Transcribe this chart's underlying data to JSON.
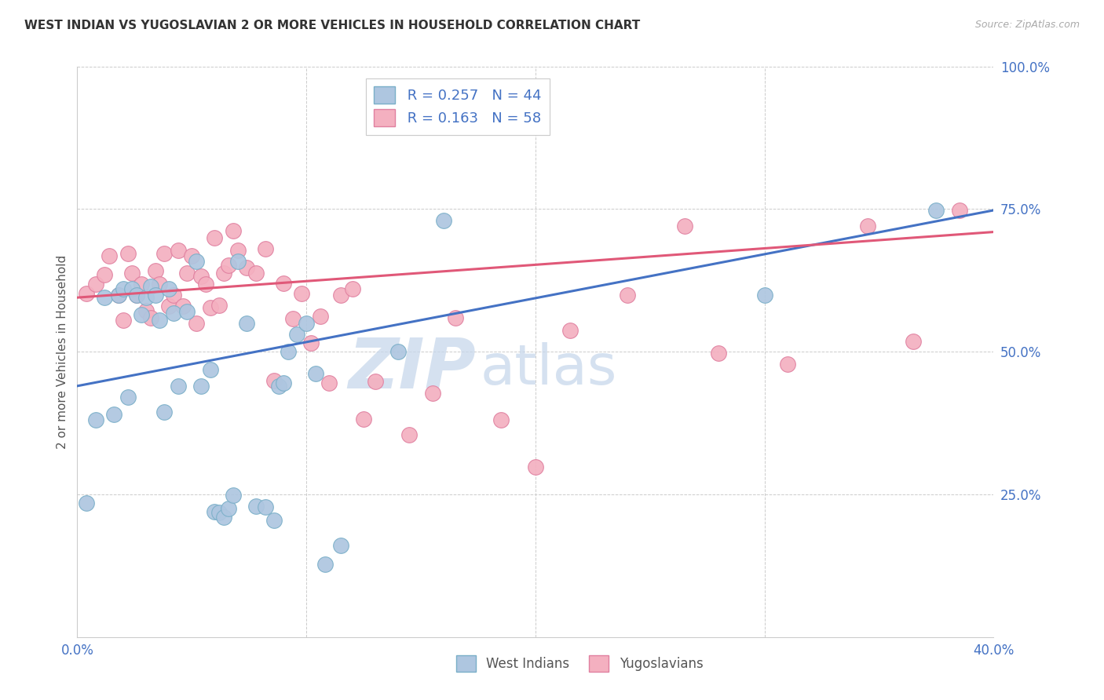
{
  "title": "WEST INDIAN VS YUGOSLAVIAN 2 OR MORE VEHICLES IN HOUSEHOLD CORRELATION CHART",
  "source": "Source: ZipAtlas.com",
  "ylabel": "2 or more Vehicles in Household",
  "xlim": [
    0.0,
    0.4
  ],
  "ylim": [
    0.0,
    1.0
  ],
  "xticks": [
    0.0,
    0.1,
    0.2,
    0.3,
    0.4
  ],
  "xticklabels": [
    "0.0%",
    "",
    "",
    "",
    "40.0%"
  ],
  "yticks": [
    0.0,
    0.25,
    0.5,
    0.75,
    1.0
  ],
  "yticklabels": [
    "",
    "25.0%",
    "50.0%",
    "75.0%",
    "100.0%"
  ],
  "blue_R": "0.257",
  "blue_N": "44",
  "pink_R": "0.163",
  "pink_N": "58",
  "blue_scatter_color": "#aec6e0",
  "blue_scatter_edge": "#7aafc8",
  "pink_scatter_color": "#f4b0c0",
  "pink_scatter_edge": "#e080a0",
  "blue_line_color": "#4472c4",
  "pink_line_color": "#e05878",
  "watermark_zip": "ZIP",
  "watermark_atlas": "atlas",
  "watermark_color": "#c8d8eb",
  "blue_trend_x0": 0.0,
  "blue_trend_x1": 0.4,
  "blue_trend_y0": 0.44,
  "blue_trend_y1": 0.748,
  "pink_trend_x0": 0.0,
  "pink_trend_x1": 0.4,
  "pink_trend_y0": 0.595,
  "pink_trend_y1": 0.71,
  "blue_x": [
    0.004,
    0.008,
    0.012,
    0.016,
    0.018,
    0.02,
    0.022,
    0.024,
    0.026,
    0.028,
    0.03,
    0.032,
    0.034,
    0.036,
    0.038,
    0.04,
    0.042,
    0.044,
    0.048,
    0.052,
    0.054,
    0.058,
    0.06,
    0.062,
    0.064,
    0.066,
    0.068,
    0.07,
    0.074,
    0.078,
    0.082,
    0.086,
    0.088,
    0.09,
    0.092,
    0.096,
    0.1,
    0.104,
    0.108,
    0.115,
    0.14,
    0.16,
    0.3,
    0.375
  ],
  "blue_y": [
    0.235,
    0.38,
    0.595,
    0.39,
    0.6,
    0.61,
    0.42,
    0.61,
    0.6,
    0.565,
    0.595,
    0.615,
    0.6,
    0.555,
    0.395,
    0.61,
    0.568,
    0.44,
    0.57,
    0.658,
    0.44,
    0.468,
    0.22,
    0.218,
    0.21,
    0.225,
    0.248,
    0.658,
    0.55,
    0.23,
    0.228,
    0.205,
    0.44,
    0.445,
    0.5,
    0.53,
    0.55,
    0.462,
    0.128,
    0.16,
    0.5,
    0.73,
    0.6,
    0.748
  ],
  "pink_x": [
    0.004,
    0.008,
    0.012,
    0.014,
    0.018,
    0.02,
    0.022,
    0.024,
    0.026,
    0.028,
    0.03,
    0.032,
    0.034,
    0.036,
    0.038,
    0.04,
    0.042,
    0.044,
    0.046,
    0.048,
    0.05,
    0.052,
    0.054,
    0.056,
    0.058,
    0.06,
    0.062,
    0.064,
    0.066,
    0.068,
    0.07,
    0.074,
    0.078,
    0.082,
    0.086,
    0.09,
    0.094,
    0.098,
    0.102,
    0.106,
    0.11,
    0.115,
    0.12,
    0.125,
    0.13,
    0.145,
    0.155,
    0.165,
    0.185,
    0.2,
    0.215,
    0.24,
    0.265,
    0.28,
    0.31,
    0.345,
    0.365,
    0.385
  ],
  "pink_y": [
    0.602,
    0.618,
    0.635,
    0.668,
    0.6,
    0.555,
    0.672,
    0.638,
    0.6,
    0.618,
    0.572,
    0.56,
    0.642,
    0.618,
    0.672,
    0.58,
    0.6,
    0.678,
    0.58,
    0.638,
    0.668,
    0.55,
    0.632,
    0.618,
    0.578,
    0.7,
    0.582,
    0.638,
    0.652,
    0.712,
    0.678,
    0.648,
    0.638,
    0.68,
    0.45,
    0.62,
    0.558,
    0.602,
    0.515,
    0.562,
    0.445,
    0.6,
    0.61,
    0.382,
    0.448,
    0.355,
    0.428,
    0.56,
    0.38,
    0.298,
    0.538,
    0.6,
    0.72,
    0.498,
    0.478,
    0.72,
    0.518,
    0.748
  ]
}
